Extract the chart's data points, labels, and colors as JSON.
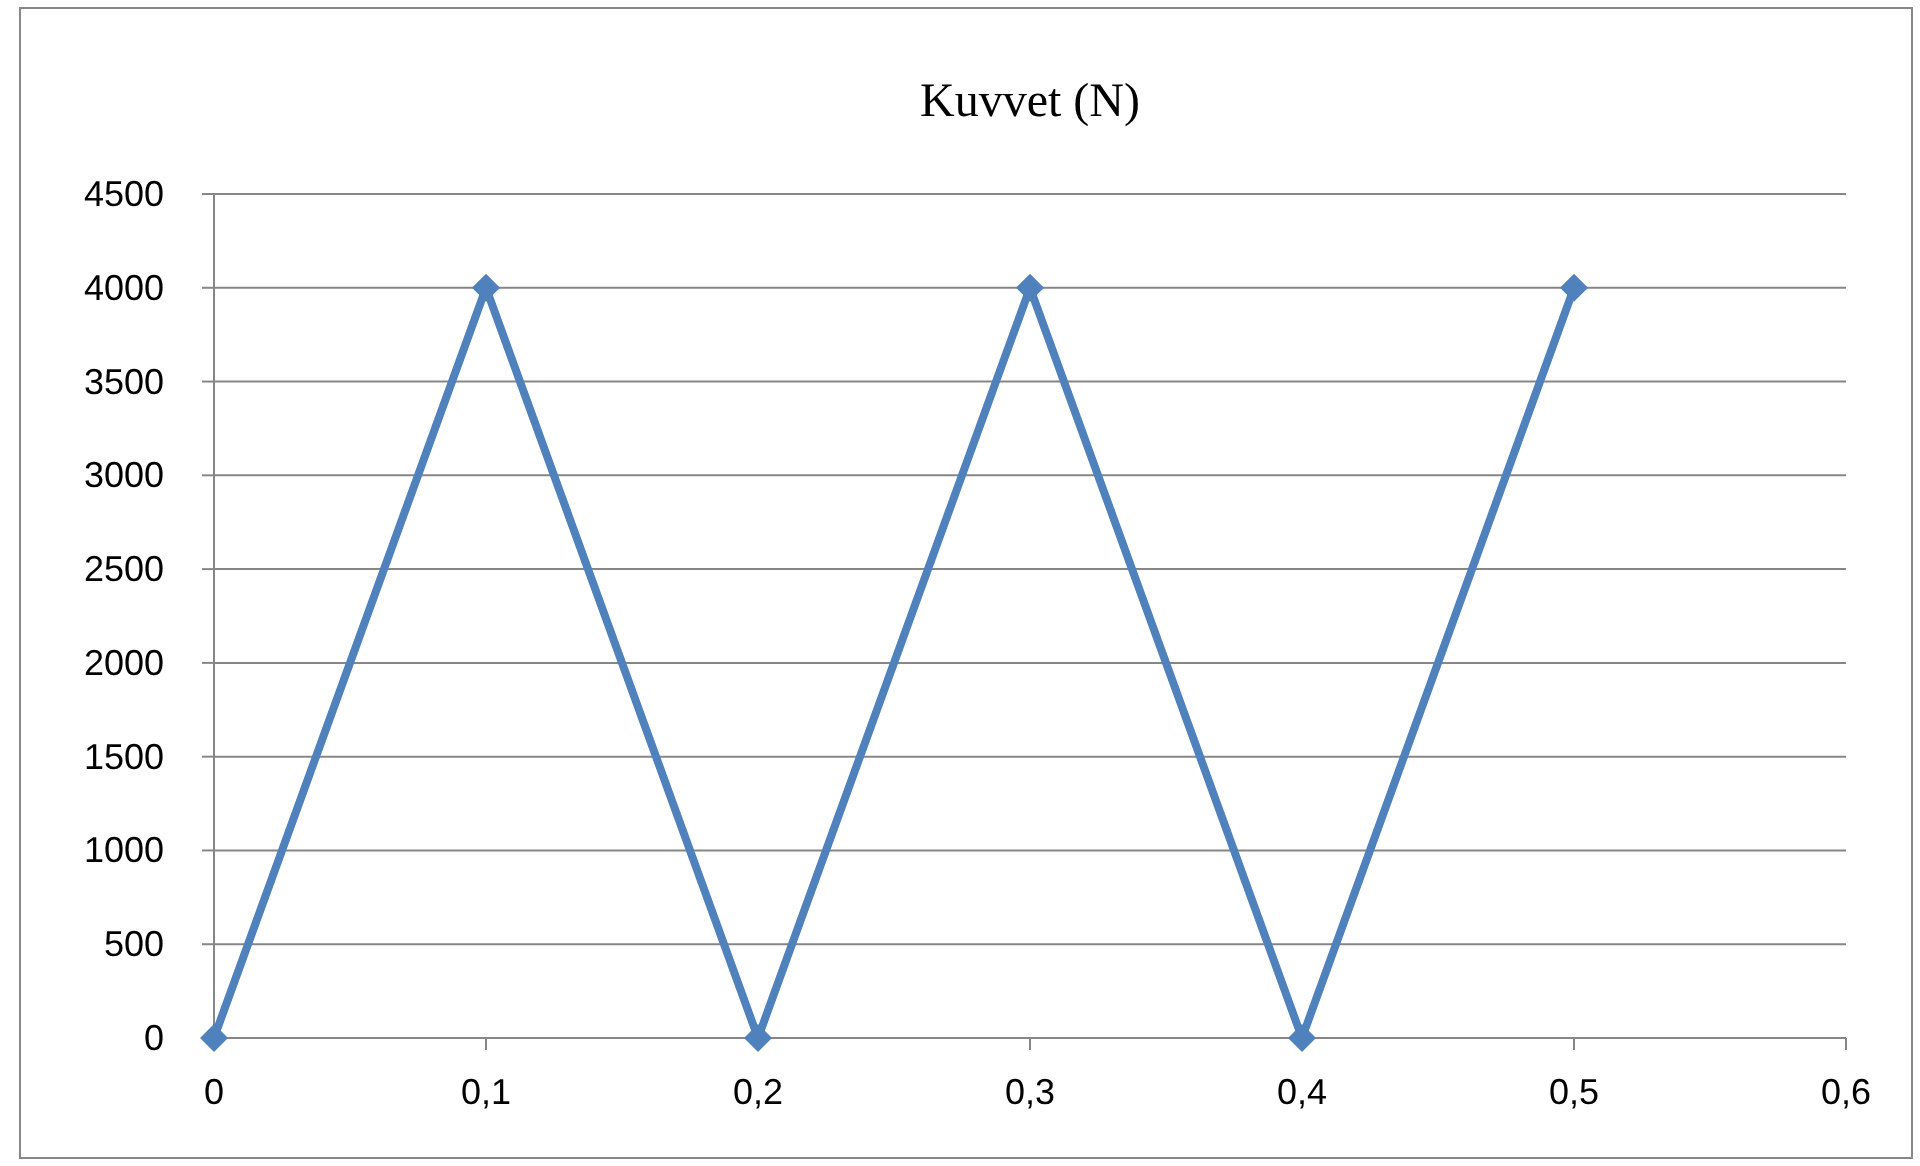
{
  "chart_data": {
    "type": "line",
    "title": "Kuvvet (N)",
    "x": [
      0,
      0.1,
      0.2,
      0.3,
      0.4,
      0.5
    ],
    "series": [
      {
        "color": "#4f81bd",
        "values": [
          0,
          4000,
          0,
          4000,
          0,
          4000
        ]
      }
    ],
    "xlim": [
      0,
      0.6
    ],
    "xticks": [
      0,
      {
        "value": 0.1,
        "label": "0,1"
      },
      {
        "value": 0.2,
        "label": "0,2"
      },
      {
        "value": 0.3,
        "label": "0,3"
      },
      {
        "value": 0.4,
        "label": "0,4"
      },
      {
        "value": 0.5,
        "label": "0,5"
      },
      {
        "value": 0.6,
        "label": "0,6"
      }
    ],
    "ylim": [
      0,
      4500
    ],
    "yticks": [
      0,
      500,
      1000,
      1500,
      2000,
      2500,
      3000,
      3500,
      4000,
      4500
    ],
    "grid": "y",
    "marker": "diamond",
    "line_style": "solid"
  }
}
